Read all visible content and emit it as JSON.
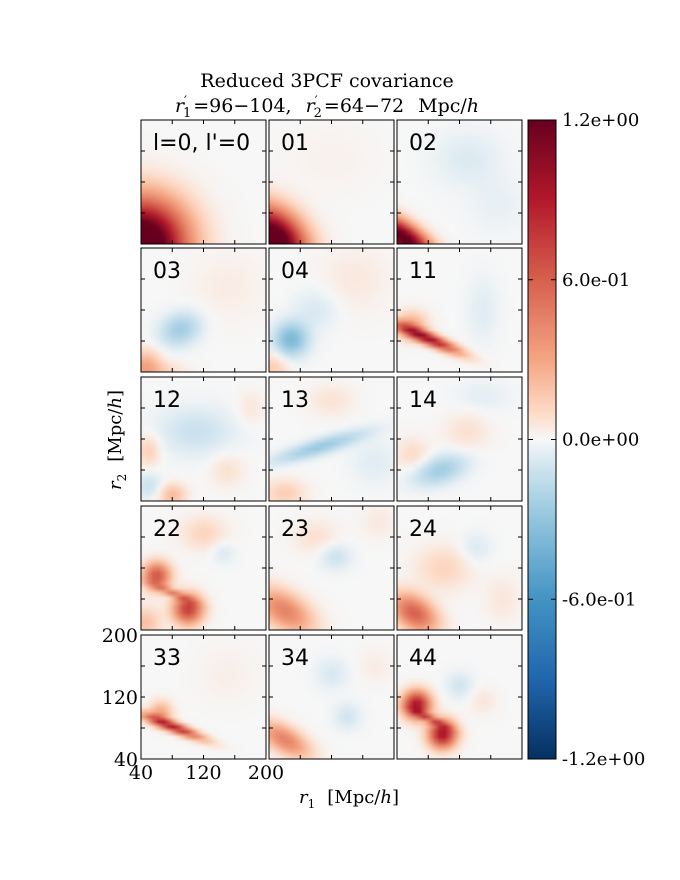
{
  "chart_data": {
    "type": "heatmap",
    "title": "Reduced  3PCF  covariance",
    "subtitle": "r′₁ =96−104,  r′₂ =64−72  Mpc/h",
    "subtitle_parts": {
      "r1_sym": "r",
      "r1_prime": "′",
      "r1_sub": "1",
      "r1_range": "=96−104,",
      "r2_sym": "r",
      "r2_prime": "′",
      "r2_sub": "2",
      "r2_range": "=64−72",
      "unit_main": "Mpc/",
      "unit_h": "h"
    },
    "xlabel": {
      "symbol": "r",
      "sub": "1",
      "unit_open": "[Mpc/",
      "unit_h": "h",
      "unit_close": "]"
    },
    "ylabel": {
      "symbol": "r",
      "sub": "2",
      "unit_open": "[Mpc/",
      "unit_h": "h",
      "unit_close": "]"
    },
    "xlim": [
      40,
      200
    ],
    "ylim": [
      40,
      200
    ],
    "xticks": [
      "40",
      "120",
      "200"
    ],
    "yticks": [
      "40",
      "120",
      "200"
    ],
    "xtick_values": [
      40,
      120,
      200
    ],
    "ytick_values": [
      40,
      120,
      200
    ],
    "minor_tick_values": [
      80,
      160
    ],
    "colorbar": {
      "range": [
        -1.2,
        1.2
      ],
      "ticks": [
        1.2,
        0.6,
        0.0,
        -0.6,
        -1.2
      ],
      "tick_labels": [
        "1.2e+00",
        "6.0e-01",
        "0.0e+00",
        "-6.0e-01",
        "-1.2e+00"
      ],
      "cmap_stops": [
        [
          -1.2,
          "#053061"
        ],
        [
          -0.9,
          "#2166ac"
        ],
        [
          -0.6,
          "#4393c3"
        ],
        [
          -0.3,
          "#92c5de"
        ],
        [
          -0.1,
          "#d1e5f0"
        ],
        [
          0.0,
          "#f7f7f7"
        ],
        [
          0.1,
          "#fddbc7"
        ],
        [
          0.3,
          "#f4a582"
        ],
        [
          0.6,
          "#d6604d"
        ],
        [
          0.9,
          "#b2182b"
        ],
        [
          1.2,
          "#67001f"
        ]
      ]
    },
    "grid": false,
    "panels": [
      {
        "label": "l=0, l'=0",
        "blobs": [
          {
            "x": 40,
            "y": 40,
            "sx": 38,
            "sy": 38,
            "amp": 1.6,
            "rho": 0.0
          }
        ]
      },
      {
        "label": "01",
        "blobs": [
          {
            "x": 45,
            "y": 45,
            "sx": 28,
            "sy": 28,
            "amp": 1.5,
            "rho": -0.3
          },
          {
            "x": 120,
            "y": 150,
            "sx": 40,
            "sy": 30,
            "amp": 0.02,
            "rho": 0.0
          }
        ]
      },
      {
        "label": "02",
        "blobs": [
          {
            "x": 48,
            "y": 48,
            "sx": 26,
            "sy": 20,
            "amp": 1.3,
            "rho": -0.7
          },
          {
            "x": 130,
            "y": 150,
            "sx": 30,
            "sy": 25,
            "amp": -0.07,
            "rho": 0.0
          },
          {
            "x": 170,
            "y": 90,
            "sx": 25,
            "sy": 25,
            "amp": -0.04,
            "rho": 0.0
          }
        ]
      },
      {
        "label": "03",
        "blobs": [
          {
            "x": 90,
            "y": 95,
            "sx": 18,
            "sy": 15,
            "amp": -0.25,
            "rho": 0.2
          },
          {
            "x": 45,
            "y": 50,
            "sx": 14,
            "sy": 14,
            "amp": 0.25,
            "rho": 0.0
          },
          {
            "x": 60,
            "y": 42,
            "sx": 25,
            "sy": 8,
            "amp": 0.12,
            "rho": 0.0
          },
          {
            "x": 150,
            "y": 150,
            "sx": 30,
            "sy": 30,
            "amp": 0.04,
            "rho": 0.0
          }
        ]
      },
      {
        "label": "04",
        "blobs": [
          {
            "x": 68,
            "y": 82,
            "sx": 15,
            "sy": 15,
            "amp": -0.38,
            "rho": 0.0
          },
          {
            "x": 100,
            "y": 120,
            "sx": 20,
            "sy": 18,
            "amp": -0.08,
            "rho": 0.0
          },
          {
            "x": 45,
            "y": 45,
            "sx": 14,
            "sy": 14,
            "amp": 0.15,
            "rho": 0.0
          },
          {
            "x": 150,
            "y": 160,
            "sx": 30,
            "sy": 30,
            "amp": 0.05,
            "rho": 0.0
          }
        ]
      },
      {
        "label": "11",
        "blobs": [
          {
            "x": 78,
            "y": 84,
            "sx": 28,
            "sy": 13,
            "amp": 1.0,
            "rho": -0.9
          },
          {
            "x": 58,
            "y": 100,
            "sx": 14,
            "sy": 12,
            "amp": 0.3,
            "rho": 0.0
          },
          {
            "x": 150,
            "y": 120,
            "sx": 14,
            "sy": 30,
            "amp": -0.06,
            "rho": 0.0
          }
        ]
      },
      {
        "label": "12",
        "blobs": [
          {
            "x": 110,
            "y": 130,
            "sx": 35,
            "sy": 22,
            "amp": -0.12,
            "rho": 0.0
          },
          {
            "x": 50,
            "y": 60,
            "sx": 12,
            "sy": 12,
            "amp": -0.12,
            "rho": 0.0
          },
          {
            "x": 50,
            "y": 105,
            "sx": 10,
            "sy": 14,
            "amp": 0.15,
            "rho": 0.0
          },
          {
            "x": 80,
            "y": 48,
            "sx": 12,
            "sy": 10,
            "amp": 0.22,
            "rho": 0.0
          },
          {
            "x": 150,
            "y": 80,
            "sx": 15,
            "sy": 15,
            "amp": 0.08,
            "rho": 0.0
          },
          {
            "x": 180,
            "y": 160,
            "sx": 12,
            "sy": 15,
            "amp": 0.06,
            "rho": 0.0
          }
        ]
      },
      {
        "label": "13",
        "blobs": [
          {
            "x": 105,
            "y": 110,
            "sx": 40,
            "sy": 14,
            "amp": -0.28,
            "rho": 0.85
          },
          {
            "x": 60,
            "y": 50,
            "sx": 18,
            "sy": 12,
            "amp": 0.15,
            "rho": 0.0
          },
          {
            "x": 120,
            "y": 170,
            "sx": 20,
            "sy": 15,
            "amp": 0.07,
            "rho": 0.0
          },
          {
            "x": 175,
            "y": 90,
            "sx": 20,
            "sy": 20,
            "amp": -0.06,
            "rho": 0.0
          }
        ]
      },
      {
        "label": "14",
        "blobs": [
          {
            "x": 95,
            "y": 80,
            "sx": 24,
            "sy": 14,
            "amp": -0.25,
            "rho": 0.4
          },
          {
            "x": 60,
            "y": 100,
            "sx": 15,
            "sy": 15,
            "amp": 0.1,
            "rho": 0.0
          },
          {
            "x": 130,
            "y": 130,
            "sx": 20,
            "sy": 18,
            "amp": 0.08,
            "rho": 0.0
          },
          {
            "x": 150,
            "y": 175,
            "sx": 25,
            "sy": 15,
            "amp": -0.05,
            "rho": 0.0
          }
        ]
      },
      {
        "label": "22",
        "blobs": [
          {
            "x": 60,
            "y": 110,
            "sx": 12,
            "sy": 12,
            "amp": 0.65,
            "rho": 0.0
          },
          {
            "x": 100,
            "y": 67,
            "sx": 13,
            "sy": 13,
            "amp": 0.75,
            "rho": 0.0
          },
          {
            "x": 80,
            "y": 88,
            "sx": 18,
            "sy": 8,
            "amp": 0.4,
            "rho": -0.9
          },
          {
            "x": 45,
            "y": 50,
            "sx": 14,
            "sy": 14,
            "amp": 0.2,
            "rho": 0.0
          },
          {
            "x": 120,
            "y": 165,
            "sx": 20,
            "sy": 15,
            "amp": 0.12,
            "rho": 0.0
          },
          {
            "x": 145,
            "y": 140,
            "sx": 10,
            "sy": 10,
            "amp": -0.08,
            "rho": 0.0
          }
        ]
      },
      {
        "label": "23",
        "blobs": [
          {
            "x": 60,
            "y": 65,
            "sx": 25,
            "sy": 20,
            "amp": 0.45,
            "rho": -0.5
          },
          {
            "x": 125,
            "y": 135,
            "sx": 14,
            "sy": 12,
            "amp": -0.12,
            "rho": 0.0
          },
          {
            "x": 100,
            "y": 160,
            "sx": 20,
            "sy": 15,
            "amp": 0.08,
            "rho": 0.0
          },
          {
            "x": 180,
            "y": 180,
            "sx": 15,
            "sy": 15,
            "amp": 0.05,
            "rho": 0.0
          }
        ]
      },
      {
        "label": "24",
        "blobs": [
          {
            "x": 62,
            "y": 62,
            "sx": 20,
            "sy": 17,
            "amp": 0.6,
            "rho": -0.4
          },
          {
            "x": 100,
            "y": 120,
            "sx": 25,
            "sy": 20,
            "amp": 0.12,
            "rho": 0.0
          },
          {
            "x": 140,
            "y": 145,
            "sx": 14,
            "sy": 14,
            "amp": -0.08,
            "rho": 0.0
          },
          {
            "x": 175,
            "y": 80,
            "sx": 15,
            "sy": 20,
            "amp": 0.06,
            "rho": 0.0
          }
        ]
      },
      {
        "label": "33",
        "blobs": [
          {
            "x": 80,
            "y": 82,
            "sx": 26,
            "sy": 11,
            "amp": 0.9,
            "rho": -0.9
          },
          {
            "x": 65,
            "y": 100,
            "sx": 10,
            "sy": 10,
            "amp": 0.3,
            "rho": 0.0
          },
          {
            "x": 150,
            "y": 150,
            "sx": 25,
            "sy": 25,
            "amp": 0.03,
            "rho": 0.0
          }
        ]
      },
      {
        "label": "34",
        "blobs": [
          {
            "x": 60,
            "y": 65,
            "sx": 22,
            "sy": 16,
            "amp": 0.45,
            "rho": -0.6
          },
          {
            "x": 120,
            "y": 150,
            "sx": 15,
            "sy": 14,
            "amp": -0.08,
            "rho": 0.0
          },
          {
            "x": 140,
            "y": 95,
            "sx": 12,
            "sy": 12,
            "amp": -0.1,
            "rho": 0.0
          },
          {
            "x": 175,
            "y": 160,
            "sx": 15,
            "sy": 15,
            "amp": 0.04,
            "rho": 0.0
          }
        ]
      },
      {
        "label": "44",
        "blobs": [
          {
            "x": 65,
            "y": 110,
            "sx": 12,
            "sy": 12,
            "amp": 0.95,
            "rho": 0.0
          },
          {
            "x": 98,
            "y": 72,
            "sx": 12,
            "sy": 12,
            "amp": 0.95,
            "rho": 0.0
          },
          {
            "x": 82,
            "y": 92,
            "sx": 16,
            "sy": 8,
            "amp": 0.5,
            "rho": -0.9
          },
          {
            "x": 120,
            "y": 135,
            "sx": 12,
            "sy": 12,
            "amp": -0.1,
            "rho": 0.0
          },
          {
            "x": 150,
            "y": 115,
            "sx": 12,
            "sy": 12,
            "amp": 0.06,
            "rho": 0.0
          }
        ]
      }
    ]
  }
}
